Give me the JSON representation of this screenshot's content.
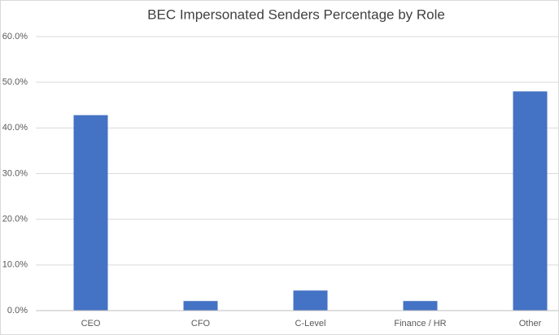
{
  "chart_data": {
    "type": "bar",
    "title": "BEC Impersonated Senders Percentage by Role",
    "categories": [
      "CEO",
      "CFO",
      "C-Level",
      "Finance / HR",
      "Other"
    ],
    "values": [
      42.8,
      2.1,
      4.4,
      2.1,
      48.0
    ],
    "color": "#4472c4",
    "ylim": [
      0,
      60
    ],
    "yticks": [
      {
        "value": 0,
        "label": "0.0%"
      },
      {
        "value": 10,
        "label": "10.0%"
      },
      {
        "value": 20,
        "label": "20.0%"
      },
      {
        "value": 30,
        "label": "30.0%"
      },
      {
        "value": 40,
        "label": "40.0%"
      },
      {
        "value": 50,
        "label": "50.0%"
      },
      {
        "value": 60,
        "label": "60.0%"
      }
    ],
    "grid": true
  }
}
